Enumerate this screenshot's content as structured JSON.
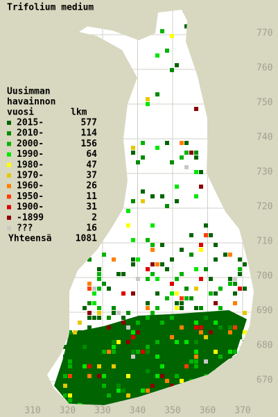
{
  "title": "Trifolium medium",
  "legend": {
    "header": [
      "Uusimman",
      "havainnon",
      "vuosi"
    ],
    "count_header": "lkm",
    "items": [
      {
        "label": "2015-",
        "count": 577,
        "color": "#006400"
      },
      {
        "label": "2010-",
        "count": 114,
        "color": "#008c00"
      },
      {
        "label": "2000-",
        "count": 156,
        "color": "#00b400"
      },
      {
        "label": "1990-",
        "count": 64,
        "color": "#00e600"
      },
      {
        "label": "1980-",
        "count": 47,
        "color": "#ffff00"
      },
      {
        "label": "1970-",
        "count": 37,
        "color": "#e6c800"
      },
      {
        "label": "1960-",
        "count": 26,
        "color": "#ff8000"
      },
      {
        "label": "1950-",
        "count": 11,
        "color": "#ff3c00"
      },
      {
        "label": "1900-",
        "count": 31,
        "color": "#dc0000"
      },
      {
        "label": "-1899",
        "count": 2,
        "color": "#8c0000"
      },
      {
        "label": "???",
        "count": 16,
        "color": "#c8c8c8"
      }
    ],
    "total_label": "Yhteensä",
    "total": 1081
  },
  "grid": {
    "y_labels": [
      770,
      760,
      750,
      740,
      730,
      720,
      710,
      700,
      690,
      680,
      670
    ],
    "x_labels": [
      310,
      320,
      330,
      340,
      350,
      360,
      370
    ]
  }
}
